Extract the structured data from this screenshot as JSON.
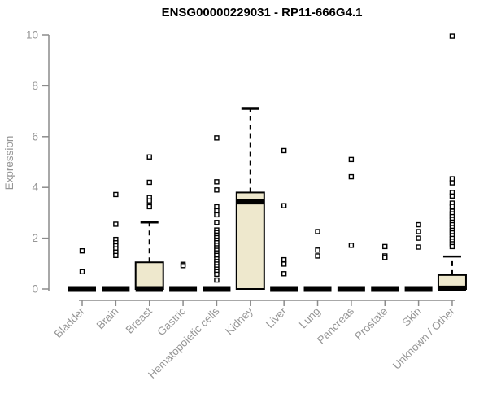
{
  "chart_data": {
    "type": "boxplot",
    "title": "ENSG00000229031 - RP11-666G4.1",
    "xlabel": "",
    "ylabel": "Expression",
    "ylim": [
      0,
      10
    ],
    "yticks": [
      0,
      2,
      4,
      6,
      8,
      10
    ],
    "grid": false,
    "legend": false,
    "categories": [
      "Bladder",
      "Brain",
      "Breast",
      "Gastric",
      "Hematopoietic cells",
      "Kidney",
      "Liver",
      "Lung",
      "Pancreas",
      "Prostate",
      "Skin",
      "Unknown / Other"
    ],
    "colors": {
      "box_fill": "#EEE8CD",
      "box_stroke": "#000000",
      "outlier_fill": "#ffffff",
      "axis_line": "#8c8c8c",
      "axis_text": "#969696",
      "title_text": "#000000",
      "background": "#ffffff"
    },
    "series": [
      {
        "category": "Bladder",
        "whisker_low": 0,
        "q1": 0,
        "median": 0,
        "q3": 0,
        "whisker_high": 0,
        "outliers": [
          1.5,
          0.68
        ]
      },
      {
        "category": "Brain",
        "whisker_low": 0,
        "q1": 0,
        "median": 0,
        "q3": 0,
        "whisker_high": 0,
        "outliers": [
          3.72,
          2.55,
          1.95,
          1.82,
          1.7,
          1.58,
          1.45,
          1.32
        ]
      },
      {
        "category": "Breast",
        "whisker_low": 0,
        "q1": 0,
        "median": 0,
        "q3": 1.05,
        "whisker_high": 2.62,
        "outliers": [
          5.2,
          4.2,
          3.6,
          3.47,
          3.24
        ]
      },
      {
        "category": "Gastric",
        "whisker_low": 0,
        "q1": 0,
        "median": 0,
        "q3": 0,
        "whisker_high": 0,
        "outliers": [
          0.97,
          0.92
        ]
      },
      {
        "category": "Hematopoietic cells",
        "whisker_low": 0,
        "q1": 0,
        "median": 0,
        "q3": 0,
        "whisker_high": 0,
        "outliers": [
          5.95,
          4.22,
          3.9,
          3.24,
          3.08,
          2.92,
          2.62,
          2.32,
          2.22,
          2.12,
          2.02,
          1.92,
          1.82,
          1.72,
          1.62,
          1.52,
          1.42,
          1.32,
          1.18,
          1.08,
          0.98,
          0.88,
          0.78,
          0.68,
          0.58,
          0.35
        ]
      },
      {
        "category": "Kidney",
        "whisker_low": 0,
        "q1": 0,
        "median": 3.44,
        "q3": 3.8,
        "whisker_high": 7.1,
        "outliers": []
      },
      {
        "category": "Liver",
        "whisker_low": 0,
        "q1": 0,
        "median": 0,
        "q3": 0,
        "whisker_high": 0,
        "outliers": [
          5.45,
          3.28,
          1.15,
          0.98,
          0.6
        ]
      },
      {
        "category": "Lung",
        "whisker_low": 0,
        "q1": 0,
        "median": 0,
        "q3": 0,
        "whisker_high": 0,
        "outliers": [
          2.26,
          1.53,
          1.3
        ]
      },
      {
        "category": "Pancreas",
        "whisker_low": 0,
        "q1": 0,
        "median": 0,
        "q3": 0,
        "whisker_high": 0,
        "outliers": [
          5.1,
          4.42,
          1.72
        ]
      },
      {
        "category": "Prostate",
        "whisker_low": 0,
        "q1": 0,
        "median": 0,
        "q3": 0,
        "whisker_high": 0,
        "outliers": [
          1.67,
          1.3,
          1.24
        ]
      },
      {
        "category": "Skin",
        "whisker_low": 0,
        "q1": 0,
        "median": 0,
        "q3": 0,
        "whisker_high": 0,
        "outliers": [
          2.53,
          2.26,
          2.0,
          1.65
        ]
      },
      {
        "category": "Unknown / Other",
        "whisker_low": 0,
        "q1": 0,
        "median": 0.02,
        "q3": 0.55,
        "whisker_high": 1.28,
        "outliers": [
          9.95,
          4.34,
          4.18,
          3.8,
          3.66,
          3.38,
          3.25,
          3.06,
          2.96,
          2.85,
          2.74,
          2.63,
          2.53,
          2.42,
          2.31,
          2.21,
          2.1,
          1.99,
          1.88,
          1.78,
          1.67
        ]
      }
    ]
  }
}
